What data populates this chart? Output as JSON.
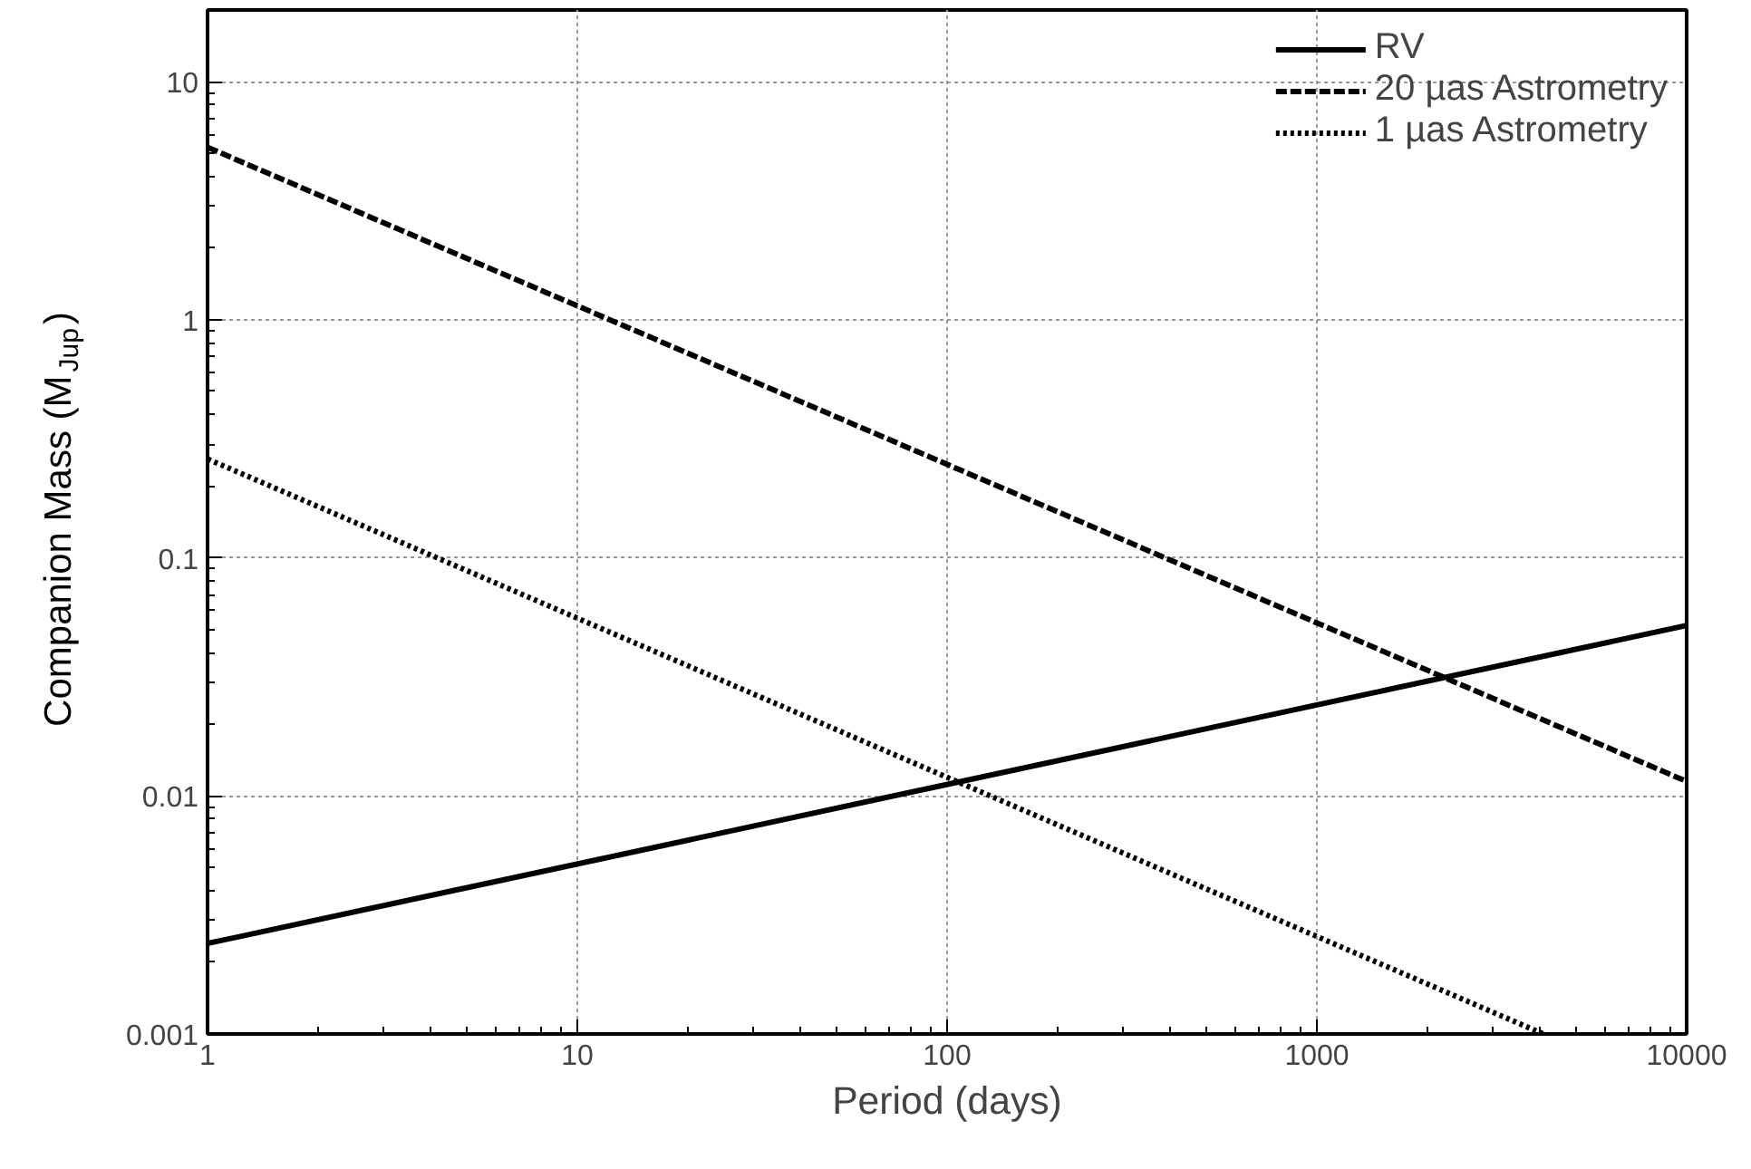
{
  "chart_data": {
    "type": "line",
    "xlabel": "Period (days)",
    "ylabel": "Companion Mass (M$_{Jup}$)",
    "log": "xy",
    "xlim": [
      1,
      10000
    ],
    "ylim": [
      0.001,
      20
    ],
    "xticks": [
      1,
      10,
      100,
      1000,
      10000
    ],
    "yticks": [
      0.001,
      0.01,
      0.1,
      1,
      10
    ],
    "grid": true,
    "legend": "top right",
    "series": [
      {
        "name": "RV",
        "color": "#000000",
        "line_style": "solid",
        "x": [
          1,
          10000
        ],
        "values": [
          0.0024,
          0.052
        ]
      },
      {
        "name": "20 µas Astrometry",
        "color": "#000000",
        "line_style": "dashed",
        "x": [
          1,
          10000
        ],
        "values": [
          5.3,
          0.0115
        ]
      },
      {
        "name": "1 µas Astrometry",
        "color": "#000000",
        "line_style": "dotted",
        "x": [
          1,
          4100
        ],
        "values": [
          0.26,
          0.001
        ]
      }
    ]
  }
}
